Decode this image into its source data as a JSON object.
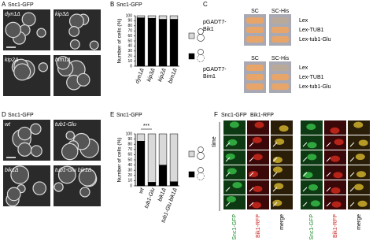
{
  "chart_data": [
    {
      "type": "bar",
      "stacked": true,
      "title": "Snc1-GFP",
      "y_label": "Number of cells (%)",
      "categories": [
        "dyn1Δ",
        "kip3Δ",
        "kip2Δ",
        "bim1Δ"
      ],
      "series": [
        {
          "color": "#000000",
          "values": [
            96,
            95,
            93,
            93
          ]
        },
        {
          "color": "#d9d9d9",
          "values": [
            4,
            5,
            7,
            7
          ]
        }
      ],
      "ylim": [
        0,
        100
      ],
      "yticks": [
        0,
        10,
        20,
        30,
        40,
        50,
        60,
        70,
        80,
        90,
        100
      ]
    },
    {
      "type": "bar",
      "stacked": true,
      "title": "Snc1-GFP",
      "y_label": "Number of cells (%)",
      "annotation": "***",
      "categories": [
        "wt",
        "tub1-Glu",
        "bik1Δ",
        "tub1-Glu bik1Δ"
      ],
      "series": [
        {
          "color": "#000000",
          "values": [
            86,
            7,
            40,
            8
          ]
        },
        {
          "color": "#d9d9d9",
          "values": [
            14,
            93,
            60,
            92
          ]
        }
      ],
      "ylim": [
        0,
        100
      ],
      "yticks": [
        0,
        10,
        20,
        30,
        40,
        50,
        60,
        70,
        80,
        90,
        100
      ]
    }
  ],
  "panels": {
    "A": {
      "letter": "A",
      "title": "Snc1-GFP",
      "images": [
        "dyn1Δ",
        "kip3Δ",
        "kip2Δ",
        "bim1Δ"
      ]
    },
    "B": {
      "letter": "B"
    },
    "C": {
      "letter": "C",
      "blocks": [
        {
          "bait": [
            "pGADT7-",
            "Bik1"
          ],
          "media": [
            "SC",
            "SC-His"
          ],
          "rows": [
            "Lex",
            "Lex-TUB1",
            "Lex-tub1-Glu"
          ]
        },
        {
          "bait": [
            "pGADT7-",
            "Bim1"
          ],
          "media": [
            "SC",
            "SC-His"
          ],
          "rows": [
            "Lex",
            "Lex-TUB1",
            "Lex-tub1-Glu"
          ]
        }
      ]
    },
    "D": {
      "letter": "D",
      "title": "Snc1-GFP",
      "images": [
        "wt",
        "tub1-Glu",
        "bik1Δ",
        "tub1-Glu bik1Δ"
      ]
    },
    "E": {
      "letter": "E"
    },
    "F": {
      "letter": "F",
      "title": [
        "Snc1-GFP",
        "Bik1-RFP"
      ],
      "axis": "time",
      "columns": [
        [
          "Snc1-GFP",
          "Bik1-RFP",
          "merge"
        ],
        [
          "Snc1-GFP",
          "Bik1-RFP",
          "merge"
        ]
      ]
    }
  }
}
